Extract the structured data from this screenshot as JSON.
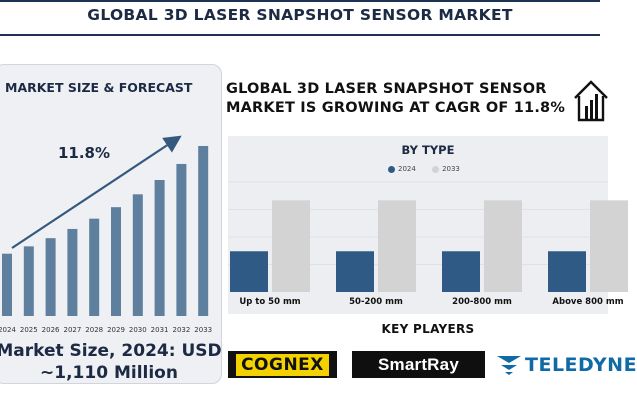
{
  "title": "GLOBAL 3D LASER SNAPSHOT SENSOR MARKET",
  "left_panel": {
    "heading": "MARKET SIZE & FORECAST",
    "cagr_label": "11.8%",
    "size_line1": "Market Size, 2024: USD",
    "size_line2": "~1,110 Million"
  },
  "right_panel": {
    "heading": "GLOBAL 3D LASER SNAPSHOT SENSOR MARKET IS GROWING AT CAGR OF 11.8%",
    "key_players_title": "KEY PLAYERS",
    "players": [
      "COGNEX",
      "SmartRay",
      "TELEDYNE"
    ]
  },
  "colors": {
    "navy": "#1c2a44",
    "bar_blue": "#5f7f9e",
    "series_2024": "#2f5a86",
    "series_2033": "#d3d3d3",
    "cognex_yellow": "#f4d200",
    "teledyne_blue": "#0f6aa6"
  },
  "icons": [
    "trend-arrow-icon",
    "house-icon",
    "teledyne-logo-icon"
  ],
  "chart_data": [
    {
      "type": "bar",
      "title": "MARKET SIZE & FORECAST",
      "categories": [
        "2024",
        "2025",
        "2026",
        "2027",
        "2028",
        "2029",
        "2030",
        "2031",
        "2032",
        "2033"
      ],
      "values": [
        1110,
        1241,
        1387,
        1551,
        1734,
        1939,
        2168,
        2423,
        2709,
        3029
      ],
      "ylim": [
        0,
        3100
      ],
      "annotation": "11.8%",
      "grid": false
    },
    {
      "type": "bar",
      "title": "BY TYPE",
      "categories": [
        "Up to 50 mm",
        "50-200 mm",
        "200-800 mm",
        "Above 800 mm"
      ],
      "series": [
        {
          "name": "2024",
          "values": [
            1,
            1,
            1,
            1
          ]
        },
        {
          "name": "2033",
          "values": [
            2.25,
            2.25,
            2.25,
            2.25
          ]
        }
      ],
      "ylim": [
        0,
        2.7
      ],
      "legend": "top-center",
      "grid": true
    }
  ]
}
